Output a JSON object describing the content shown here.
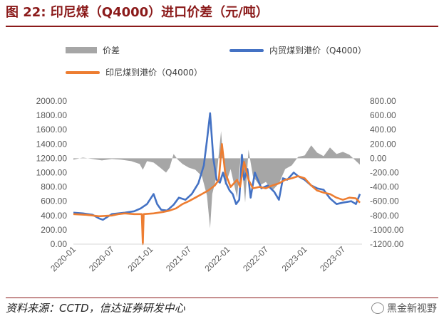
{
  "header": {
    "title": "图 22: 印尼煤（Q4000）进口价差（元/吨）"
  },
  "footer": {
    "source": "资料来源：CCTD，信达证券研发中心",
    "watermark": "黑金新视野"
  },
  "colors": {
    "spread": "#a6a6a6",
    "domestic": "#4472c4",
    "indonesia": "#ed7d31",
    "title": "#8b1a1a"
  },
  "chart_data": {
    "type": "line",
    "legend_placement": "top",
    "grid": false,
    "x_ticks": [
      "2020-01",
      "2020-07",
      "2021-01",
      "2021-07",
      "2022-01",
      "2022-07",
      "2023-01",
      "2023-07"
    ],
    "x_range": [
      "2020-01-01",
      "2023-09-30"
    ],
    "y_left": {
      "min": 0,
      "max": 2000,
      "ticks": [
        "0.00",
        "200.00",
        "400.00",
        "600.00",
        "800.00",
        "1000.00",
        "1200.00",
        "1400.00",
        "1600.00",
        "1800.00",
        "2000.00"
      ]
    },
    "y_right": {
      "min": -1200,
      "max": 800,
      "ticks": [
        "-1200.00",
        "-1000.00",
        "-800.00",
        "-600.00",
        "-400.00",
        "-200.00",
        "0.00",
        "200.00",
        "400.00",
        "600.00",
        "800.00"
      ]
    },
    "series": [
      {
        "name": "价差",
        "kind": "area",
        "axis": "right",
        "points": [
          [
            "2020-01-01",
            -20
          ],
          [
            "2020-02-15",
            10
          ],
          [
            "2020-04-01",
            -10
          ],
          [
            "2020-05-15",
            -30
          ],
          [
            "2020-07-01",
            -10
          ],
          [
            "2020-08-15",
            -20
          ],
          [
            "2020-10-01",
            -40
          ],
          [
            "2020-11-10",
            -80
          ],
          [
            "2020-11-25",
            -160
          ],
          [
            "2020-12-15",
            -40
          ],
          [
            "2021-01-15",
            -60
          ],
          [
            "2021-02-15",
            -130
          ],
          [
            "2021-03-15",
            -200
          ],
          [
            "2021-04-01",
            -130
          ],
          [
            "2021-04-20",
            60
          ],
          [
            "2021-05-10",
            -20
          ],
          [
            "2021-06-01",
            -80
          ],
          [
            "2021-07-01",
            -130
          ],
          [
            "2021-08-01",
            -160
          ],
          [
            "2021-09-01",
            -250
          ],
          [
            "2021-09-25",
            -520
          ],
          [
            "2021-10-10",
            -980
          ],
          [
            "2021-10-20",
            -500
          ],
          [
            "2021-11-10",
            -250
          ],
          [
            "2021-12-01",
            380
          ],
          [
            "2021-12-20",
            -380
          ],
          [
            "2022-01-15",
            -150
          ],
          [
            "2022-02-15",
            -550
          ],
          [
            "2022-03-05",
            60
          ],
          [
            "2022-03-25",
            -620
          ],
          [
            "2022-04-10",
            120
          ],
          [
            "2022-05-01",
            -250
          ],
          [
            "2022-06-01",
            -380
          ],
          [
            "2022-07-01",
            -330
          ],
          [
            "2022-08-01",
            -450
          ],
          [
            "2022-09-01",
            -350
          ],
          [
            "2022-10-01",
            -150
          ],
          [
            "2022-11-01",
            -100
          ],
          [
            "2022-12-01",
            20
          ],
          [
            "2023-01-01",
            40
          ],
          [
            "2023-02-01",
            180
          ],
          [
            "2023-03-01",
            80
          ],
          [
            "2023-04-01",
            30
          ],
          [
            "2023-05-01",
            150
          ],
          [
            "2023-06-01",
            60
          ],
          [
            "2023-07-01",
            90
          ],
          [
            "2023-08-01",
            50
          ],
          [
            "2023-09-20",
            -90
          ]
        ]
      },
      {
        "name": "内贸煤到港价（Q4000）",
        "kind": "line",
        "axis": "left",
        "points": [
          [
            "2020-01-01",
            440
          ],
          [
            "2020-02-15",
            430
          ],
          [
            "2020-04-01",
            410
          ],
          [
            "2020-05-01",
            360
          ],
          [
            "2020-05-20",
            340
          ],
          [
            "2020-07-01",
            420
          ],
          [
            "2020-09-01",
            440
          ],
          [
            "2020-10-15",
            460
          ],
          [
            "2020-11-15",
            500
          ],
          [
            "2020-12-15",
            560
          ],
          [
            "2021-01-15",
            700
          ],
          [
            "2021-02-01",
            560
          ],
          [
            "2021-02-20",
            480
          ],
          [
            "2021-03-20",
            470
          ],
          [
            "2021-04-20",
            550
          ],
          [
            "2021-05-15",
            650
          ],
          [
            "2021-06-15",
            620
          ],
          [
            "2021-07-15",
            700
          ],
          [
            "2021-08-15",
            850
          ],
          [
            "2021-09-10",
            1100
          ],
          [
            "2021-09-25",
            1450
          ],
          [
            "2021-10-10",
            1830
          ],
          [
            "2021-10-25",
            1200
          ],
          [
            "2021-11-10",
            900
          ],
          [
            "2021-11-25",
            860
          ],
          [
            "2021-12-10",
            1000
          ],
          [
            "2021-12-25",
            850
          ],
          [
            "2022-01-10",
            750
          ],
          [
            "2022-01-25",
            700
          ],
          [
            "2022-02-10",
            560
          ],
          [
            "2022-02-25",
            620
          ],
          [
            "2022-03-10",
            1250
          ],
          [
            "2022-03-20",
            900
          ],
          [
            "2022-04-05",
            1050
          ],
          [
            "2022-04-20",
            650
          ],
          [
            "2022-05-10",
            1000
          ],
          [
            "2022-06-10",
            780
          ],
          [
            "2022-07-10",
            820
          ],
          [
            "2022-08-10",
            730
          ],
          [
            "2022-09-01",
            620
          ],
          [
            "2022-09-20",
            920
          ],
          [
            "2022-10-10",
            900
          ],
          [
            "2022-11-10",
            1000
          ],
          [
            "2022-12-01",
            950
          ],
          [
            "2023-01-01",
            900
          ],
          [
            "2023-02-01",
            820
          ],
          [
            "2023-03-01",
            780
          ],
          [
            "2023-04-01",
            760
          ],
          [
            "2023-05-01",
            640
          ],
          [
            "2023-06-01",
            560
          ],
          [
            "2023-07-01",
            580
          ],
          [
            "2023-08-10",
            600
          ],
          [
            "2023-09-01",
            560
          ],
          [
            "2023-09-20",
            700
          ]
        ]
      },
      {
        "name": "印尼煤到港价（Q4000）",
        "kind": "line",
        "axis": "left",
        "points": [
          [
            "2020-01-01",
            420
          ],
          [
            "2020-03-01",
            410
          ],
          [
            "2020-05-01",
            390
          ],
          [
            "2020-07-01",
            400
          ],
          [
            "2020-08-01",
            420
          ],
          [
            "2020-09-01",
            430
          ],
          [
            "2020-10-15",
            420
          ],
          [
            "2020-11-20",
            420
          ],
          [
            "2020-11-25",
            0
          ],
          [
            "2020-11-29",
            420
          ],
          [
            "2021-01-15",
            430
          ],
          [
            "2021-03-01",
            450
          ],
          [
            "2021-04-01",
            470
          ],
          [
            "2021-05-01",
            500
          ],
          [
            "2021-06-01",
            560
          ],
          [
            "2021-07-01",
            600
          ],
          [
            "2021-08-01",
            650
          ],
          [
            "2021-09-01",
            700
          ],
          [
            "2021-10-01",
            750
          ],
          [
            "2021-11-01",
            820
          ],
          [
            "2021-11-20",
            900
          ],
          [
            "2021-12-05",
            1400
          ],
          [
            "2021-12-20",
            1000
          ],
          [
            "2022-01-15",
            800
          ],
          [
            "2022-02-15",
            900
          ],
          [
            "2022-03-01",
            800
          ],
          [
            "2022-03-20",
            1150
          ],
          [
            "2022-04-10",
            900
          ],
          [
            "2022-05-01",
            780
          ],
          [
            "2022-06-01",
            800
          ],
          [
            "2022-07-01",
            780
          ],
          [
            "2022-08-01",
            820
          ],
          [
            "2022-09-01",
            850
          ],
          [
            "2022-10-01",
            900
          ],
          [
            "2022-11-01",
            920
          ],
          [
            "2022-12-01",
            950
          ],
          [
            "2023-01-01",
            920
          ],
          [
            "2023-02-01",
            820
          ],
          [
            "2023-03-01",
            750
          ],
          [
            "2023-04-01",
            720
          ],
          [
            "2023-05-01",
            700
          ],
          [
            "2023-06-01",
            650
          ],
          [
            "2023-07-01",
            620
          ],
          [
            "2023-08-01",
            650
          ],
          [
            "2023-09-01",
            640
          ],
          [
            "2023-09-20",
            580
          ]
        ]
      }
    ]
  }
}
